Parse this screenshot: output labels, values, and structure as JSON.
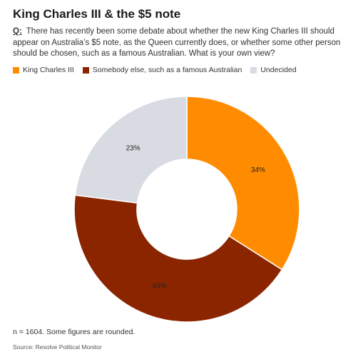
{
  "title": "King Charles III & the $5 note",
  "question": {
    "label": "Q:",
    "text": "There has recently been some debate about whether the new King Charles III should appear on Australia’s $5 note, as the Queen currently does, or whether some other person should be chosen, such as a famous Australian. What is your own view?"
  },
  "colors": {
    "king": "#FF8C00",
    "someone_else": "#8B2500",
    "undecided": "#D8DBE2"
  },
  "chart_data": {
    "type": "pie",
    "donut": true,
    "slices": [
      {
        "label": "King Charles III",
        "value": 34,
        "display": "34%",
        "color": "#FF8C00"
      },
      {
        "label": "Somebody else, such as a famous Australian",
        "value": 43,
        "display": "43%",
        "color": "#8B2500"
      },
      {
        "label": "Undecided",
        "value": 23,
        "display": "23%",
        "color": "#D8DBE2"
      }
    ],
    "legend_position": "top-left"
  },
  "footer": {
    "note": "n = 1604. Some figures are rounded.",
    "source": "Source: Resolve Political Monitor"
  }
}
